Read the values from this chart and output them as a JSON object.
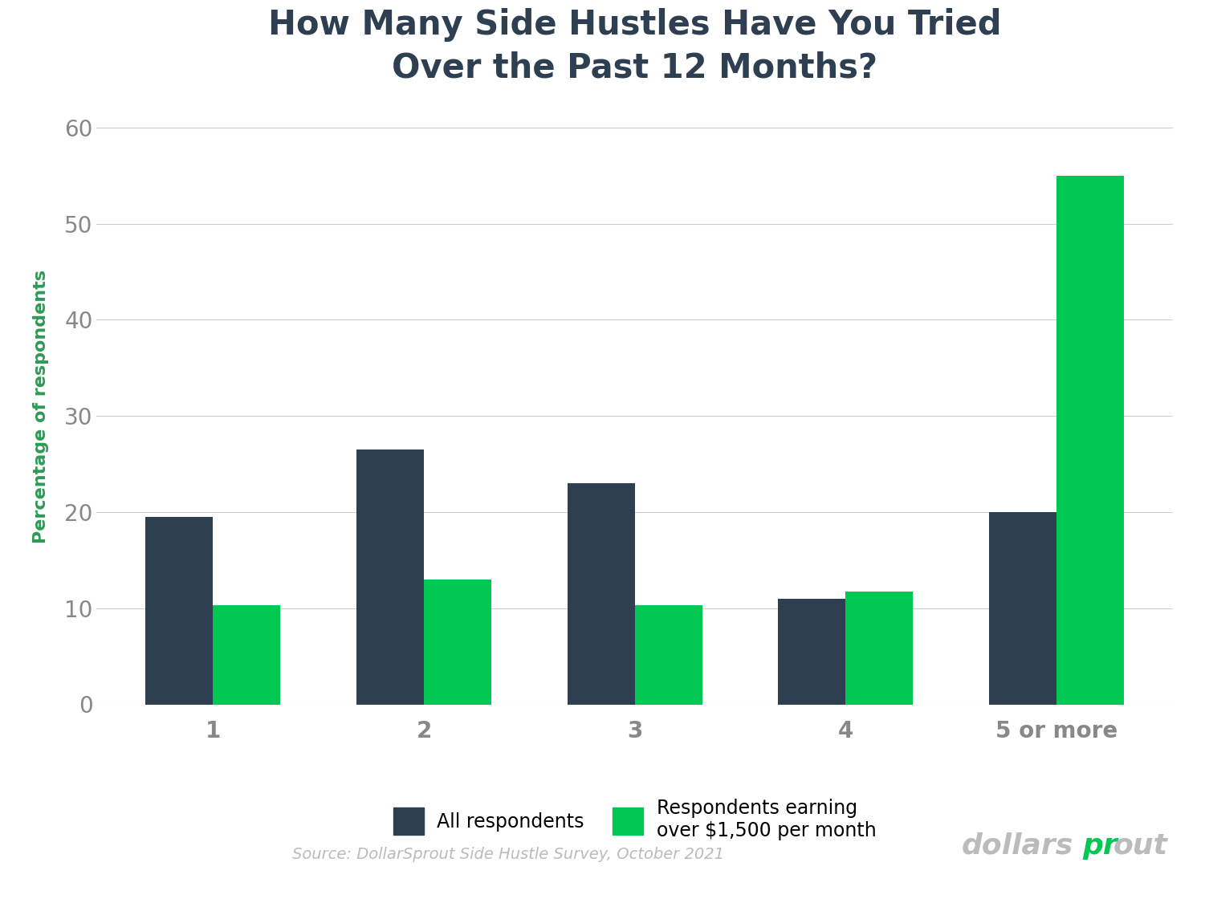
{
  "title": "How Many Side Hustles Have You Tried\nOver the Past 12 Months?",
  "categories": [
    "1",
    "2",
    "3",
    "4",
    "5 or more"
  ],
  "all_respondents": [
    19.5,
    26.5,
    23.0,
    11.0,
    20.0
  ],
  "high_earners": [
    10.3,
    13.0,
    10.3,
    11.7,
    55.0
  ],
  "bar_color_all": "#2e3f52",
  "bar_color_high": "#00c853",
  "ylabel": "Percentage of respondents",
  "ylim": [
    0,
    62
  ],
  "yticks": [
    0,
    10,
    20,
    30,
    40,
    50,
    60
  ],
  "legend_label_all": "All respondents",
  "legend_label_high": "Respondents earning\nover $1,500 per month",
  "source_text": "Source: DollarSprout Side Hustle Survey, October 2021",
  "background_color": "#ffffff",
  "grid_color": "#cccccc",
  "title_color": "#2e3f52",
  "ylabel_color": "#2e9955",
  "tick_color": "#888888",
  "bar_width": 0.32,
  "logo_gray": "#bbbbbb",
  "logo_green": "#00c853"
}
